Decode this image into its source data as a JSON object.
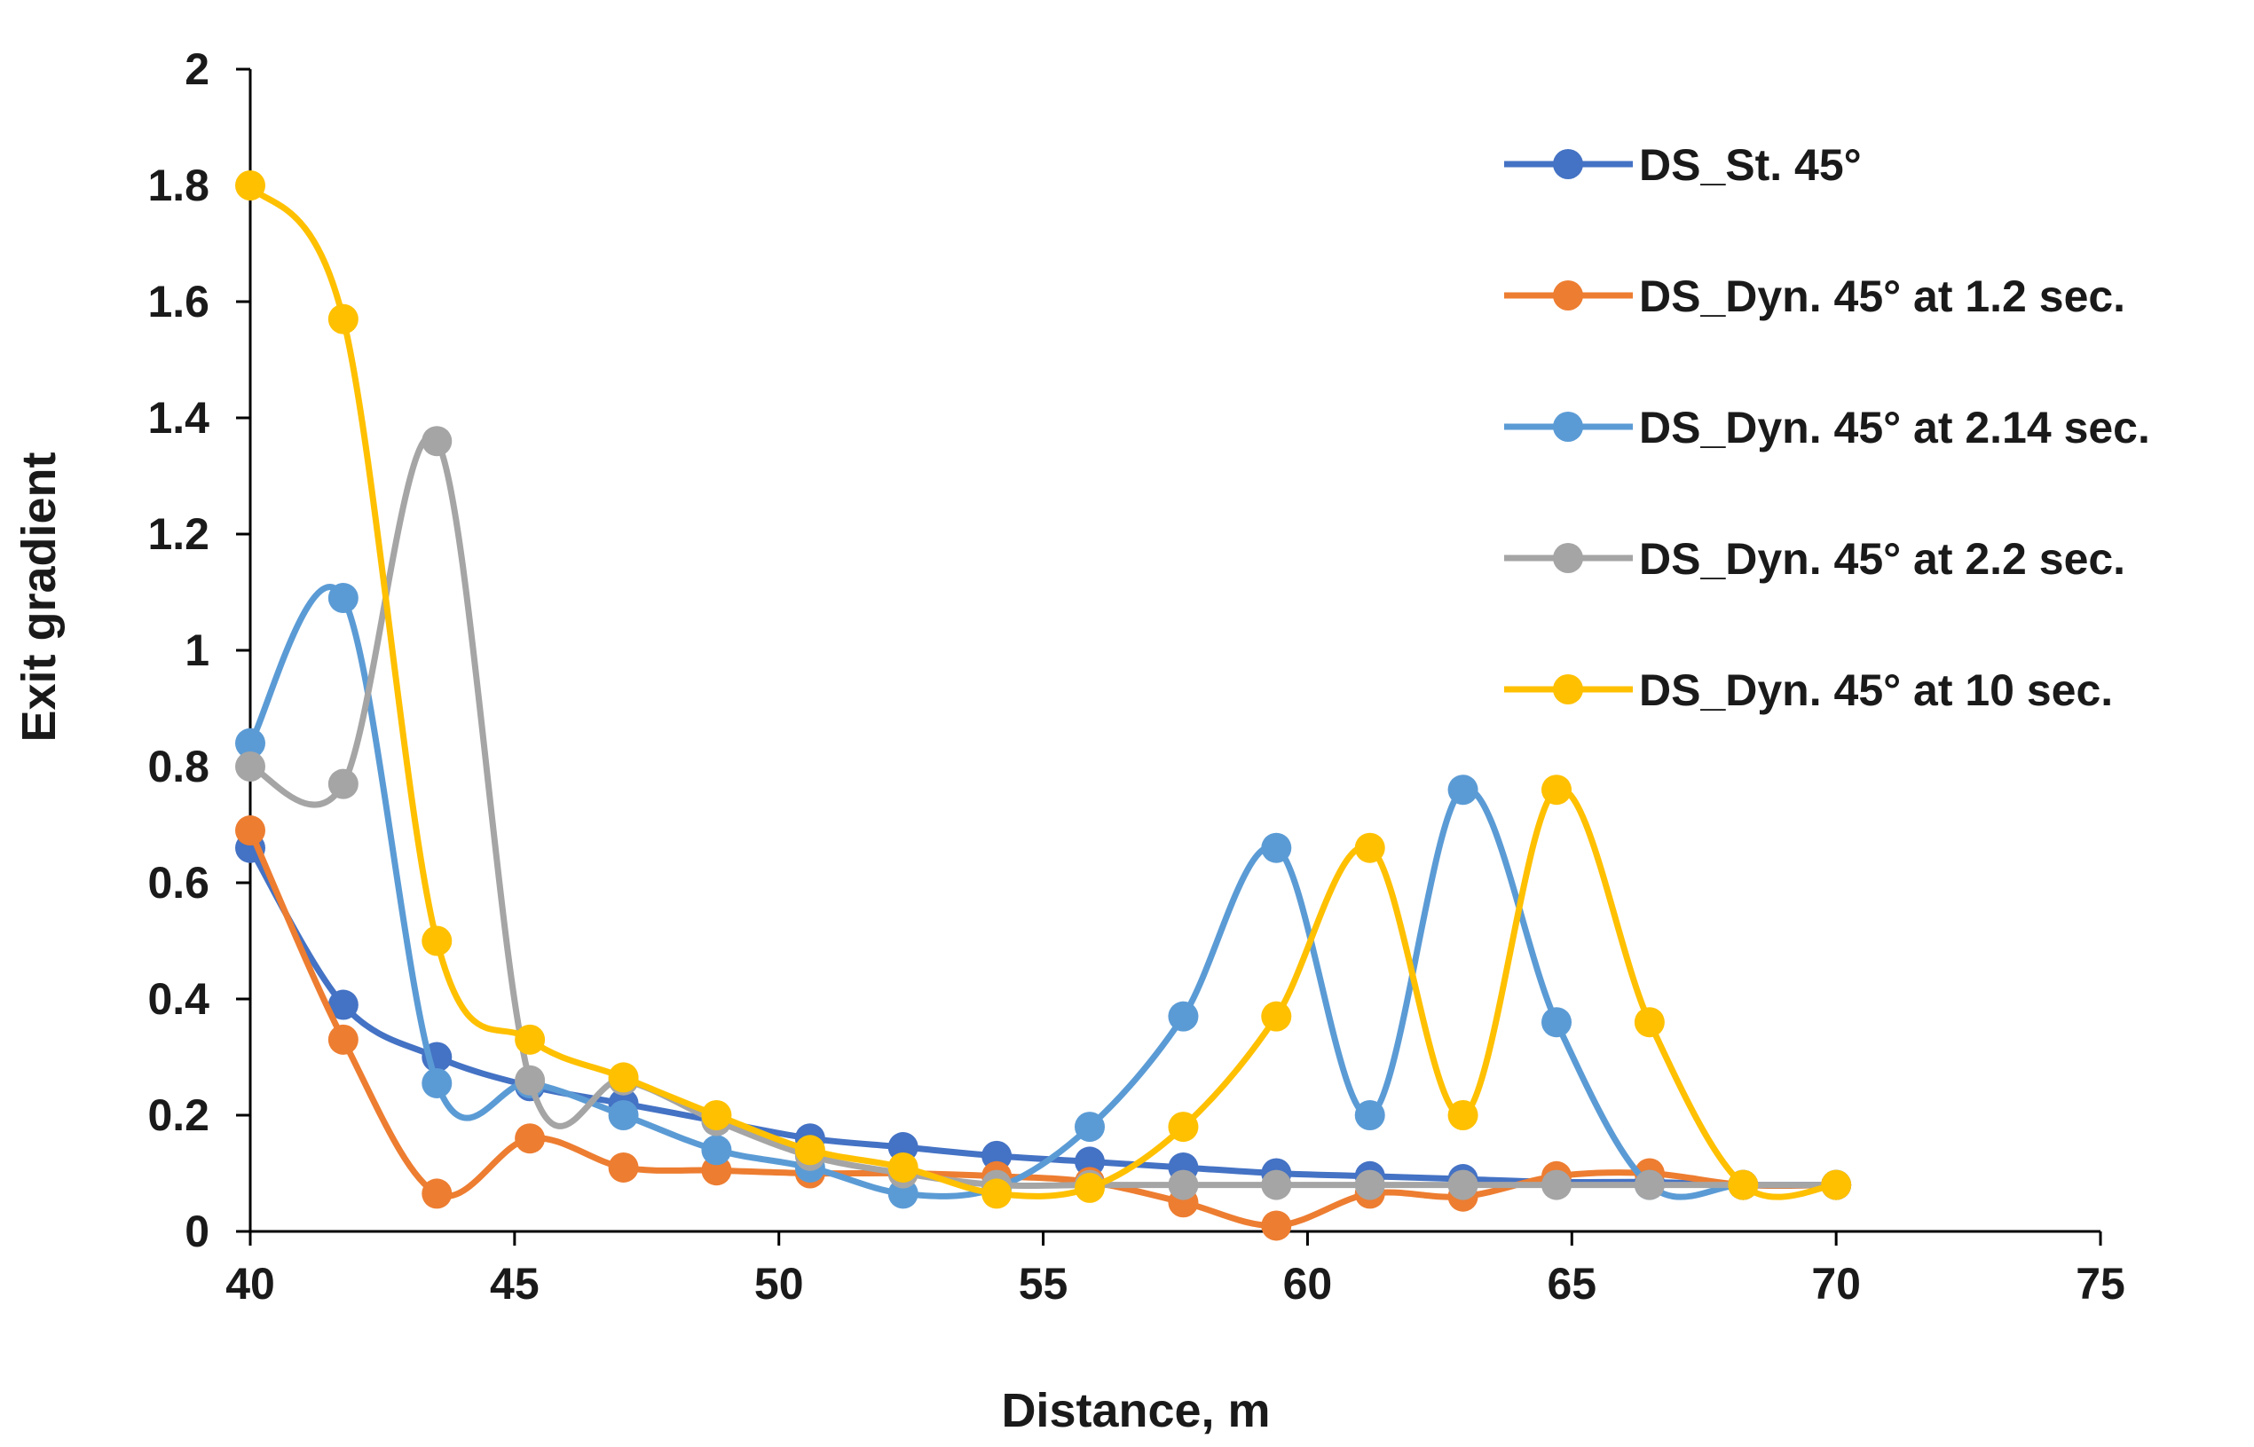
{
  "chart_data": {
    "type": "line",
    "smooth": true,
    "title": "",
    "xlabel": "Distance, m",
    "ylabel": "Exit gradient",
    "xlim": [
      40,
      75
    ],
    "ylim": [
      0,
      2
    ],
    "xticks": [
      40,
      45,
      50,
      55,
      60,
      65,
      70,
      75
    ],
    "yticks": [
      0,
      0.2,
      0.4,
      0.6,
      0.8,
      1,
      1.2,
      1.4,
      1.6,
      1.8,
      2
    ],
    "grid": false,
    "legend_position": "right",
    "x": [
      40,
      41.76,
      43.53,
      45.29,
      47.06,
      48.82,
      50.59,
      52.35,
      54.12,
      55.88,
      57.65,
      59.41,
      61.18,
      62.94,
      64.71,
      66.47,
      68.24,
      70
    ],
    "series": [
      {
        "name": "DS_St. 45°",
        "color": "#4472C4",
        "values": [
          0.66,
          0.39,
          0.3,
          0.25,
          0.22,
          0.19,
          0.16,
          0.145,
          0.13,
          0.12,
          0.11,
          0.1,
          0.095,
          0.09,
          0.085,
          0.085,
          0.08,
          0.08
        ]
      },
      {
        "name": "DS_Dyn. 45° at 1.2 sec.",
        "color": "#ED7D31",
        "values": [
          0.69,
          0.33,
          0.065,
          0.16,
          0.11,
          0.105,
          0.1,
          0.1,
          0.095,
          0.085,
          0.05,
          0.01,
          0.065,
          0.06,
          0.095,
          0.1,
          0.08,
          0.08
        ]
      },
      {
        "name": "DS_Dyn. 45° at 2.14 sec.",
        "color": "#5B9BD5",
        "values": [
          0.84,
          1.09,
          0.255,
          0.255,
          0.2,
          0.14,
          0.11,
          0.065,
          0.075,
          0.18,
          0.37,
          0.66,
          0.2,
          0.76,
          0.36,
          0.08,
          0.08,
          0.08
        ]
      },
      {
        "name": "DS_Dyn. 45° at 2.2 sec.",
        "color": "#A5A5A5",
        "values": [
          0.8,
          0.77,
          1.36,
          0.26,
          0.26,
          0.19,
          0.13,
          0.1,
          0.08,
          0.08,
          0.08,
          0.08,
          0.08,
          0.08,
          0.08,
          0.08,
          0.08,
          0.08
        ]
      },
      {
        "name": "DS_Dyn. 45° at 10 sec.",
        "color": "#FFC000",
        "values": [
          1.8,
          1.57,
          0.5,
          0.33,
          0.265,
          0.2,
          0.14,
          0.11,
          0.065,
          0.075,
          0.18,
          0.37,
          0.66,
          0.2,
          0.76,
          0.36,
          0.08,
          0.08
        ]
      }
    ]
  }
}
